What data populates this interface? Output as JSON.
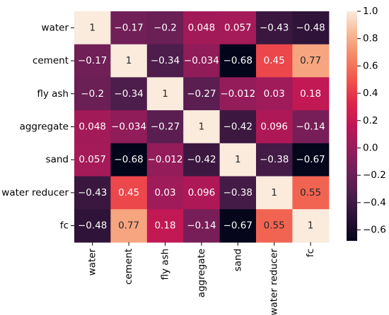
{
  "chart_data": {
    "type": "heatmap",
    "title": "",
    "xlabel": "",
    "ylabel": "",
    "rows": [
      "water",
      "cement",
      "fly ash",
      "aggregate",
      "sand",
      "water reducer",
      "fc"
    ],
    "columns": [
      "water",
      "cement",
      "fly ash",
      "aggregate",
      "sand",
      "water reducer",
      "fc"
    ],
    "values": [
      [
        1,
        -0.17,
        -0.2,
        0.048,
        0.057,
        -0.43,
        -0.48
      ],
      [
        -0.17,
        1,
        -0.34,
        -0.034,
        -0.68,
        0.45,
        0.77
      ],
      [
        -0.2,
        -0.34,
        1,
        -0.27,
        -0.012,
        0.03,
        0.18
      ],
      [
        0.048,
        -0.034,
        -0.27,
        1,
        -0.42,
        0.096,
        -0.14
      ],
      [
        0.057,
        -0.68,
        -0.012,
        -0.42,
        1,
        -0.38,
        -0.67
      ],
      [
        -0.43,
        0.45,
        0.03,
        0.096,
        -0.38,
        1,
        0.55
      ],
      [
        -0.48,
        0.77,
        0.18,
        -0.14,
        -0.67,
        0.55,
        1
      ]
    ],
    "annotations": true,
    "colorbar": {
      "range": [
        -0.68,
        1.0
      ],
      "ticks": [
        1.0,
        0.8,
        0.6,
        0.4,
        0.2,
        0.0,
        -0.2,
        -0.4,
        -0.6
      ],
      "tick_labels": [
        "1.0",
        "0.8",
        "0.6",
        "0.4",
        "0.2",
        "0.0",
        "−0.2",
        "−0.4",
        "−0.6"
      ],
      "colormap": "rocket",
      "placement": "right"
    },
    "grid": false
  }
}
